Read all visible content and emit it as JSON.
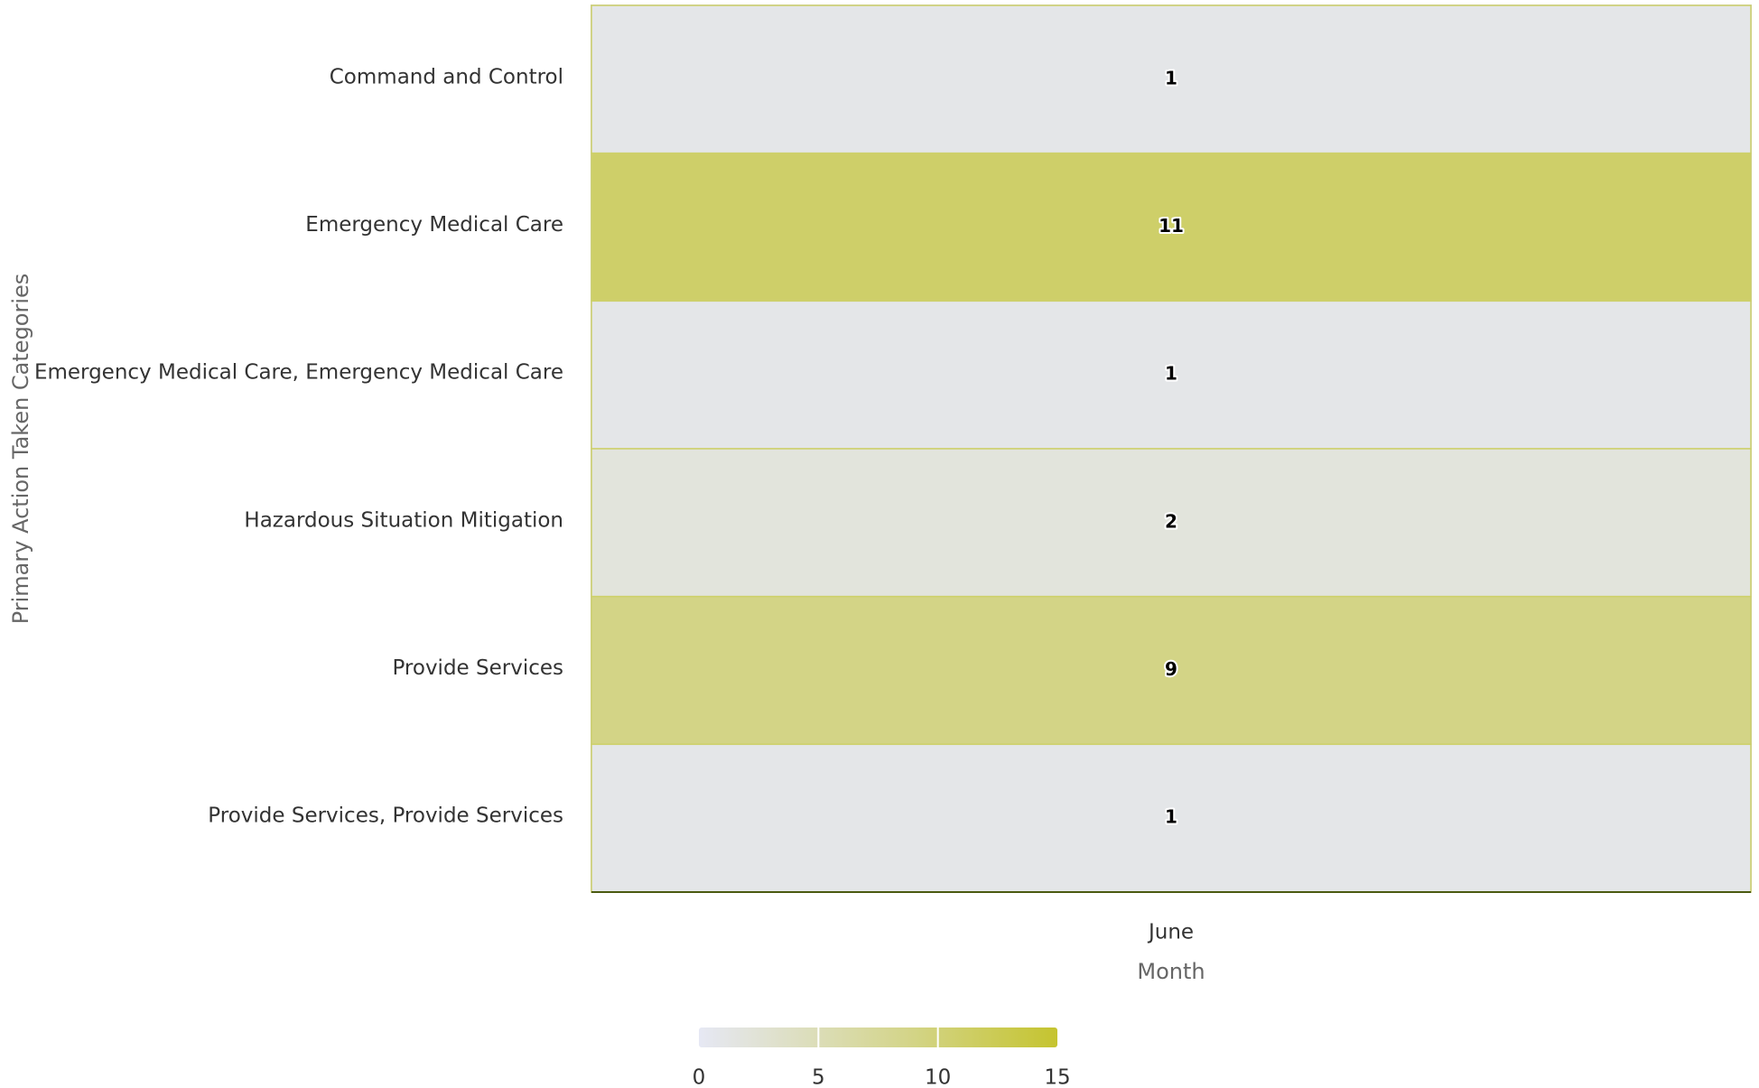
{
  "chart_data": {
    "type": "heatmap",
    "x_label": "Month",
    "y_label": "Primary Action Taken Categories",
    "x_categories": [
      "June"
    ],
    "y_categories": [
      "Command and Control",
      "Emergency Medical Care",
      "Emergency Medical Care, Emergency Medical Care",
      "Hazardous Situation Mitigation",
      "Provide Services",
      "Provide Services, Provide Services"
    ],
    "values": [
      [
        1
      ],
      [
        11
      ],
      [
        1
      ],
      [
        2
      ],
      [
        9
      ],
      [
        1
      ]
    ],
    "colorbar_lim": [
      0,
      15
    ],
    "colorbar_ticks": [
      0,
      5,
      10,
      15
    ],
    "color_stops": [
      [
        0,
        "#e6e8f4"
      ],
      [
        0.6,
        "#d3d486"
      ],
      [
        1,
        "#c5c42f"
      ]
    ]
  }
}
